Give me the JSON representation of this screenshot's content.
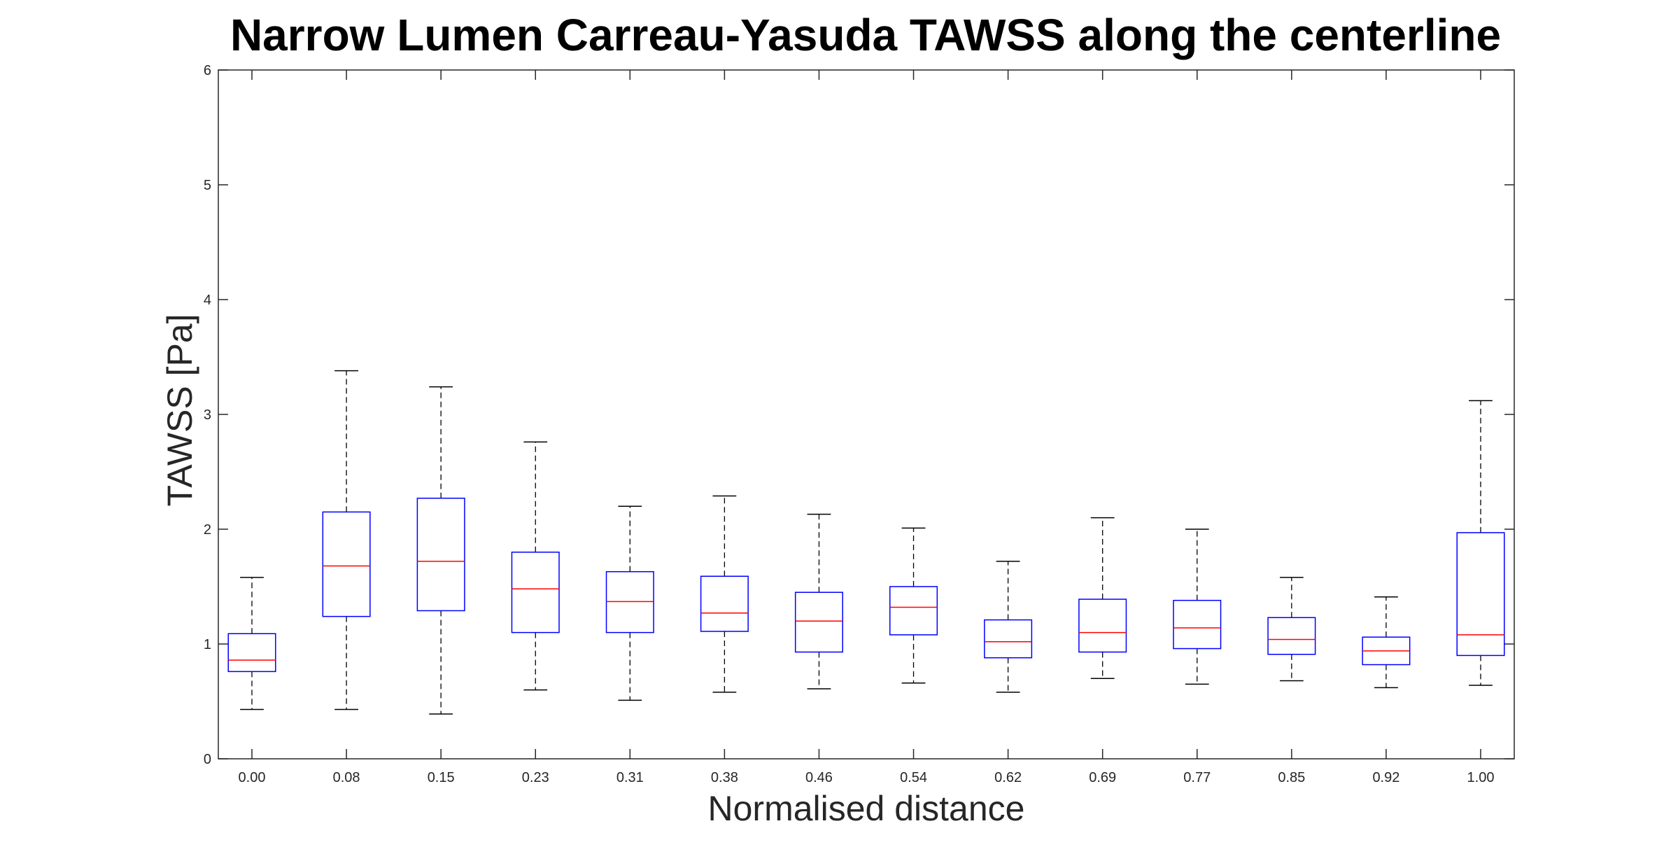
{
  "chart_data": {
    "type": "box",
    "title": "Narrow Lumen Carreau-Yasuda TAWSS along the centerline",
    "xlabel": "Normalised distance",
    "ylabel": "TAWSS [Pa]",
    "ylim": [
      0,
      6
    ],
    "yticks": [
      "0",
      "1",
      "2",
      "3",
      "4",
      "5",
      "6"
    ],
    "grid": false,
    "categories": [
      "0.00",
      "0.08",
      "0.15",
      "0.23",
      "0.31",
      "0.38",
      "0.46",
      "0.54",
      "0.62",
      "0.69",
      "0.77",
      "0.85",
      "0.92",
      "1.00"
    ],
    "boxes": [
      {
        "whisker_low": 0.43,
        "q1": 0.76,
        "median": 0.86,
        "q3": 1.09,
        "whisker_high": 1.58
      },
      {
        "whisker_low": 0.43,
        "q1": 1.24,
        "median": 1.68,
        "q3": 2.15,
        "whisker_high": 3.38
      },
      {
        "whisker_low": 0.39,
        "q1": 1.29,
        "median": 1.72,
        "q3": 2.27,
        "whisker_high": 3.24
      },
      {
        "whisker_low": 0.6,
        "q1": 1.1,
        "median": 1.48,
        "q3": 1.8,
        "whisker_high": 2.76
      },
      {
        "whisker_low": 0.51,
        "q1": 1.1,
        "median": 1.37,
        "q3": 1.63,
        "whisker_high": 2.2
      },
      {
        "whisker_low": 0.58,
        "q1": 1.11,
        "median": 1.27,
        "q3": 1.59,
        "whisker_high": 2.29
      },
      {
        "whisker_low": 0.61,
        "q1": 0.93,
        "median": 1.2,
        "q3": 1.45,
        "whisker_high": 2.13
      },
      {
        "whisker_low": 0.66,
        "q1": 1.08,
        "median": 1.32,
        "q3": 1.5,
        "whisker_high": 2.01
      },
      {
        "whisker_low": 0.58,
        "q1": 0.88,
        "median": 1.02,
        "q3": 1.21,
        "whisker_high": 1.72
      },
      {
        "whisker_low": 0.7,
        "q1": 0.93,
        "median": 1.1,
        "q3": 1.39,
        "whisker_high": 2.1
      },
      {
        "whisker_low": 0.65,
        "q1": 0.96,
        "median": 1.14,
        "q3": 1.38,
        "whisker_high": 2.0
      },
      {
        "whisker_low": 0.68,
        "q1": 0.91,
        "median": 1.04,
        "q3": 1.23,
        "whisker_high": 1.58
      },
      {
        "whisker_low": 0.62,
        "q1": 0.82,
        "median": 0.94,
        "q3": 1.06,
        "whisker_high": 1.41
      },
      {
        "whisker_low": 0.64,
        "q1": 0.9,
        "median": 1.08,
        "q3": 1.97,
        "whisker_high": 3.12
      }
    ],
    "colors": {
      "box": "#0000ff",
      "median": "#ff0000",
      "whisker": "#000000",
      "axis": "#262626"
    }
  }
}
